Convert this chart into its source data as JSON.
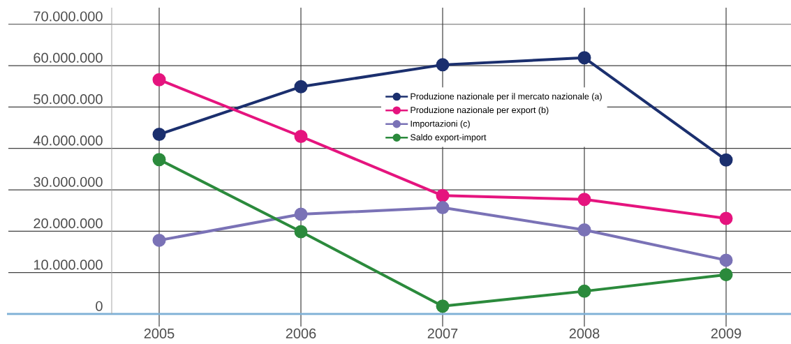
{
  "chart_data": {
    "type": "line",
    "categories": [
      "2005",
      "2006",
      "2007",
      "2008",
      "2009"
    ],
    "series": [
      {
        "name": "Produzione nazionale per il mercato nazionale (a)",
        "color": "#1b2f6e",
        "values": [
          43400000,
          54900000,
          60200000,
          61900000,
          37200000
        ]
      },
      {
        "name": "Produzione nazionale per export (b)",
        "color": "#e5147e",
        "values": [
          56600000,
          42900000,
          28600000,
          27700000,
          23100000
        ]
      },
      {
        "name": "Importazioni (c)",
        "color": "#7a72b6",
        "values": [
          17800000,
          24100000,
          25700000,
          20300000,
          13000000
        ]
      },
      {
        "name": "Saldo export-import",
        "color": "#2b8a3c",
        "values": [
          37300000,
          19900000,
          1900000,
          5500000,
          9500000
        ]
      }
    ],
    "ylim": [
      0,
      74000000
    ],
    "yticks": [
      0,
      {
        "value": 10000000,
        "label": "10.000.000"
      },
      {
        "value": 20000000,
        "label": "20.000.000"
      },
      {
        "value": 30000000,
        "label": "30.000.000"
      },
      {
        "value": 40000000,
        "label": "40.000.000"
      },
      {
        "value": 50000000,
        "label": "50.000.000"
      },
      {
        "value": 60000000,
        "label": "60.000.000"
      },
      {
        "value": 70000000,
        "label": "70.000.000"
      }
    ],
    "grid": true,
    "legend": "top",
    "marker": "circle",
    "line_style": "solid"
  }
}
